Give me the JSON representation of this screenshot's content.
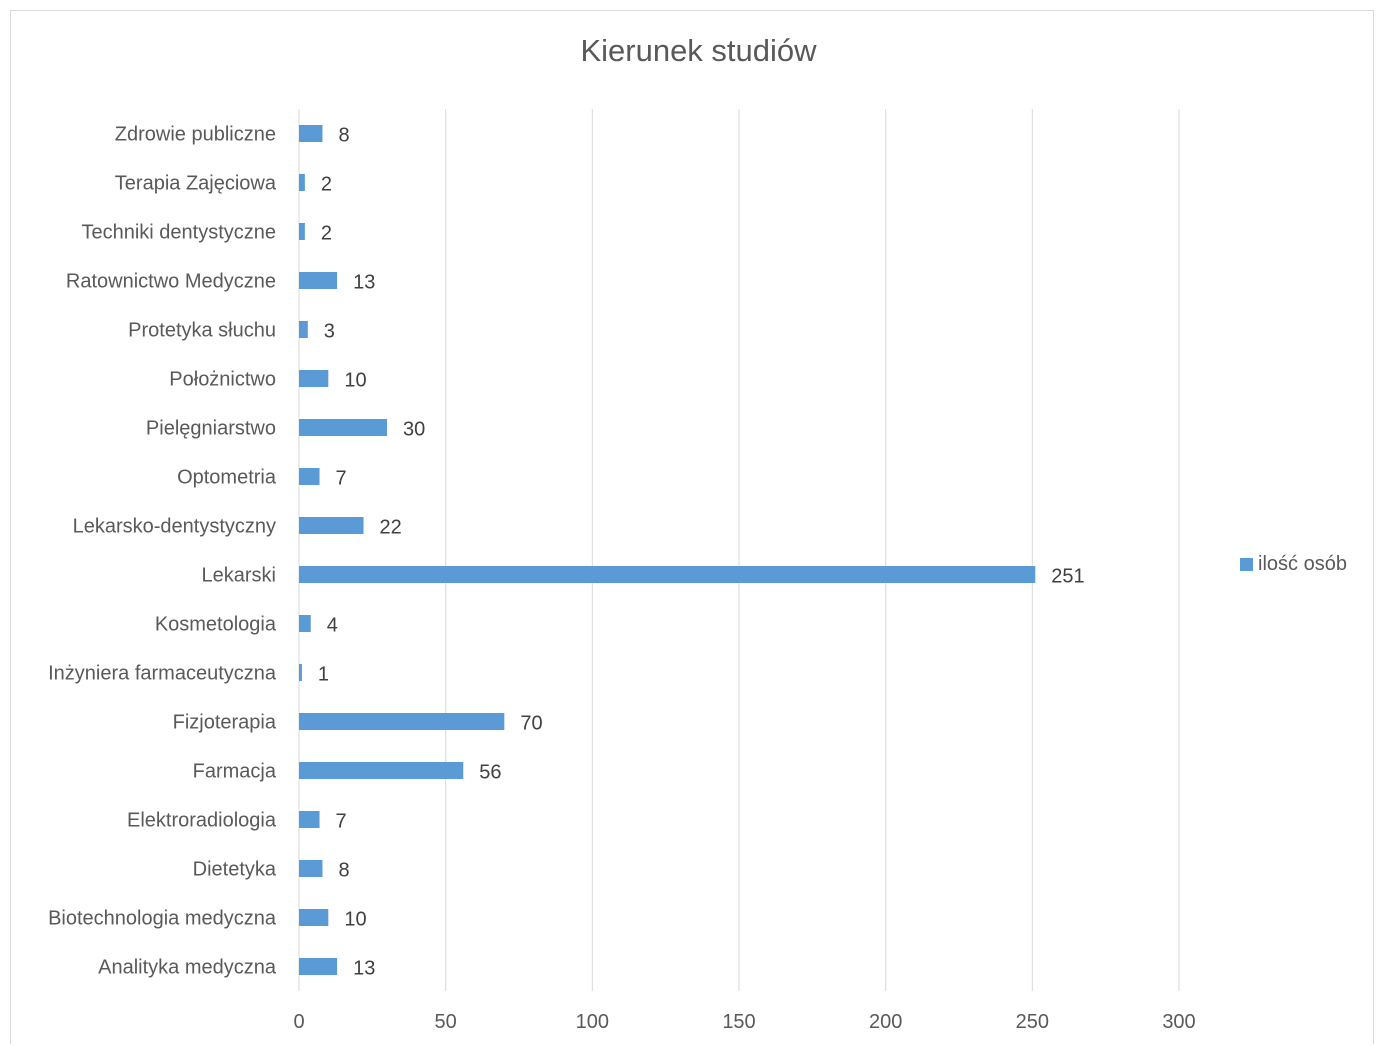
{
  "chart_data": {
    "type": "bar",
    "orientation": "horizontal",
    "title": "Kierunek studiów",
    "categories": [
      "Analityka medyczna",
      "Biotechnologia medyczna",
      "Dietetyka",
      "Elektroradiologia",
      "Farmacja",
      "Fizjoterapia",
      "Inżyniera farmaceutyczna",
      "Kosmetologia",
      "Lekarski",
      "Lekarsko-dentystyczny",
      "Optometria",
      "Pielęgniarstwo",
      "Położnictwo",
      "Protetyka słuchu",
      "Ratownictwo Medyczne",
      "Techniki dentystyczne",
      "Terapia Zajęciowa",
      "Zdrowie publiczne"
    ],
    "series": [
      {
        "name": "ilość osób",
        "values": [
          13,
          10,
          8,
          7,
          56,
          70,
          1,
          4,
          251,
          22,
          7,
          30,
          10,
          3,
          13,
          2,
          2,
          8
        ],
        "color": "#5b9bd5"
      }
    ],
    "xlim": [
      0,
      300
    ],
    "xticks": [
      0,
      50,
      100,
      150,
      200,
      250,
      300
    ],
    "grid": "vertical",
    "legend_position": "right",
    "data_labels": true
  }
}
